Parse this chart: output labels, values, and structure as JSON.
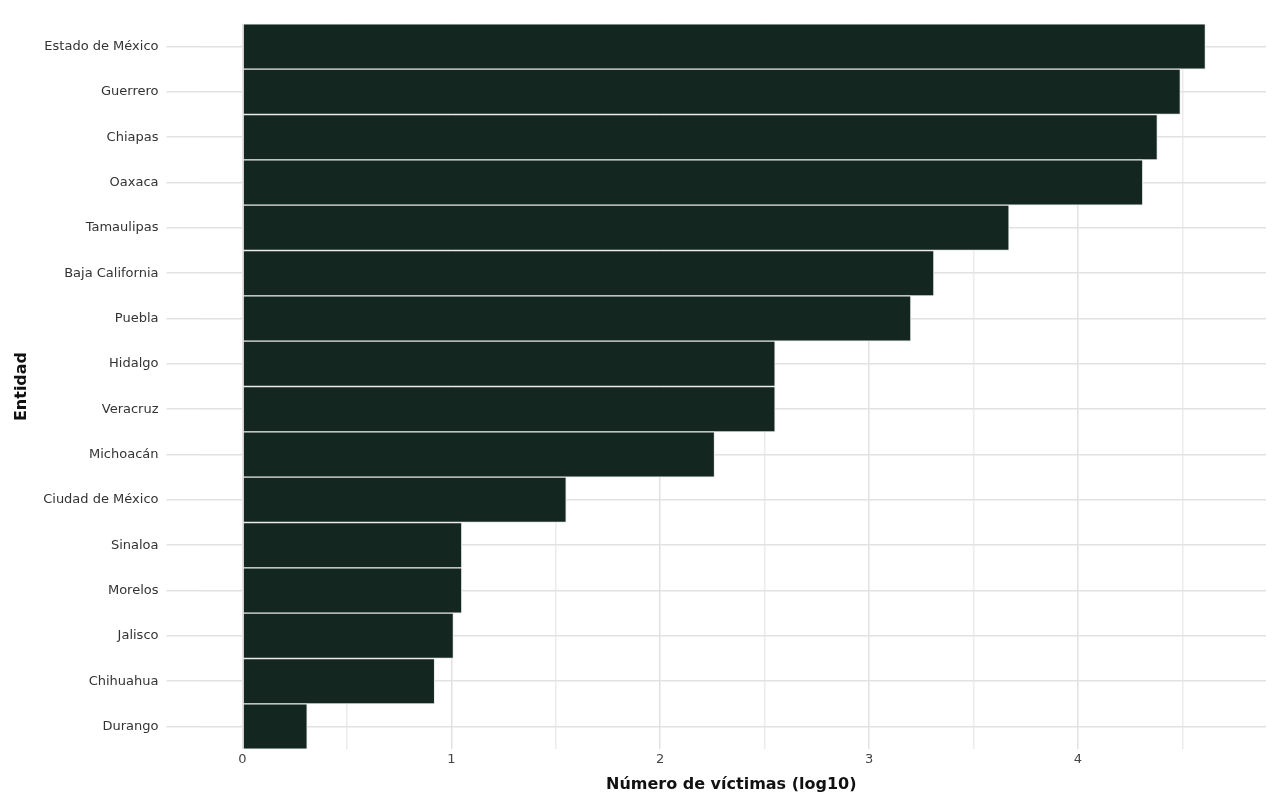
{
  "chart_data": {
    "type": "bar",
    "orientation": "horizontal",
    "xlabel": "Número de víctimas (log10)",
    "ylabel": "Entidad",
    "categories": [
      "Estado de México",
      "Guerrero",
      "Chiapas",
      "Oaxaca",
      "Tamaulipas",
      "Baja California",
      "Puebla",
      "Hidalgo",
      "Veracruz",
      "Michoacán",
      "Ciudad de México",
      "Sinaloa",
      "Morelos",
      "Jalisco",
      "Chihuahua",
      "Durango"
    ],
    "values": [
      4.61,
      4.49,
      4.38,
      4.31,
      3.67,
      3.31,
      3.2,
      2.55,
      2.55,
      2.26,
      1.55,
      1.05,
      1.05,
      1.01,
      0.92,
      0.31
    ],
    "color": "#13261f",
    "xlim": [
      -0.22,
      4.9
    ],
    "xticks": [
      0,
      {
        "value": 0.5,
        "label": null
      },
      1,
      {
        "value": 1.5,
        "label": null
      },
      2,
      {
        "value": 2.5,
        "label": null
      },
      3,
      {
        "value": 3.5,
        "label": null
      },
      4,
      {
        "value": 4.5,
        "label": null
      }
    ],
    "grid": true,
    "legend": false
  }
}
